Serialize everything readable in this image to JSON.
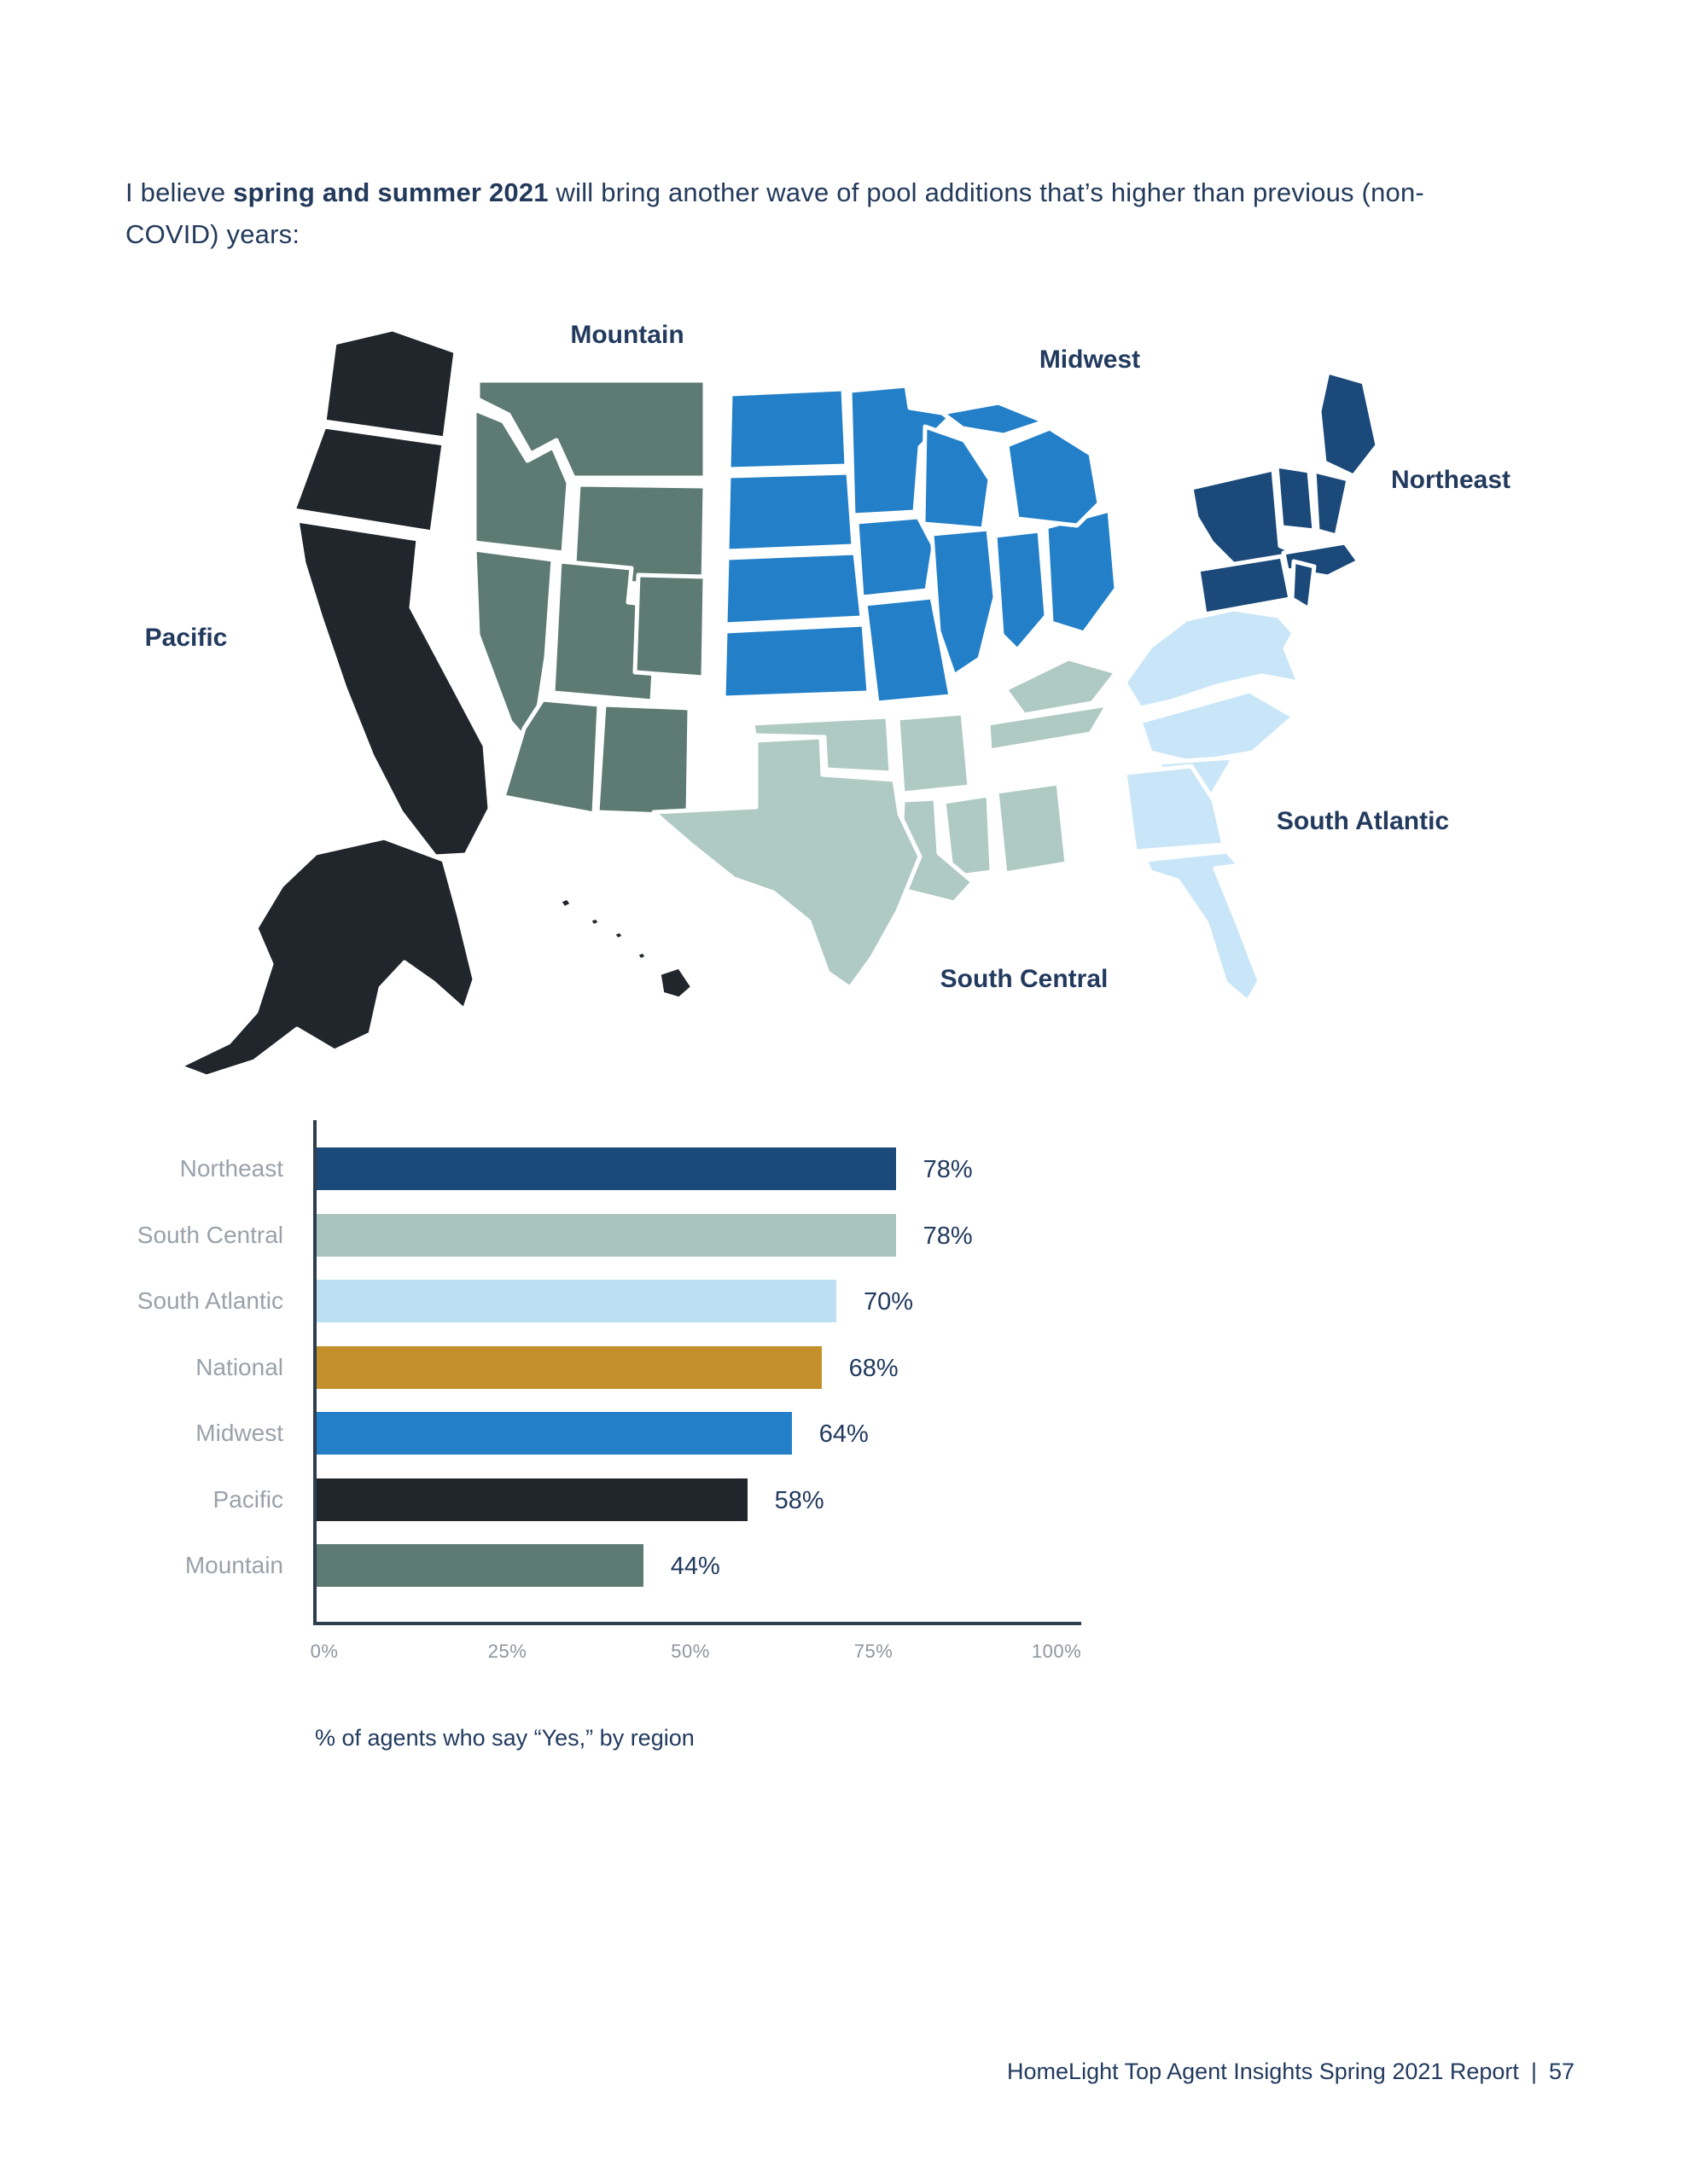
{
  "heading": {
    "prefix": "I believe ",
    "bold": "spring and summer 2021",
    "suffix": " will bring another wave of pool additions that’s higher than previous (non-COVID) years:"
  },
  "map": {
    "labels": [
      {
        "id": "mountain",
        "text": "Mountain"
      },
      {
        "id": "midwest",
        "text": "Midwest"
      },
      {
        "id": "northeast",
        "text": "Northeast"
      },
      {
        "id": "pacific",
        "text": "Pacific"
      },
      {
        "id": "south-atlantic",
        "text": "South Atlantic"
      },
      {
        "id": "south-central",
        "text": "South Central"
      }
    ],
    "region_colors": {
      "pacific": "#20262C",
      "mountain": "#5D7A73",
      "midwest": "#2380C8",
      "northeast": "#1B4A7A",
      "south_atlantic": "#C9E6F8",
      "south_central": "#AFC9C3"
    }
  },
  "chart_data": {
    "type": "bar",
    "orientation": "horizontal",
    "categories": [
      "Northeast",
      "South Central",
      "South Atlantic",
      "National",
      "Midwest",
      "Pacific",
      "Mountain"
    ],
    "values": [
      78,
      78,
      70,
      68,
      64,
      58,
      44
    ],
    "value_labels": [
      "78%",
      "78%",
      "70%",
      "68%",
      "64%",
      "58%",
      "44%"
    ],
    "bar_colors": [
      "#1B4A7A",
      "#A9C4BE",
      "#BCDFF4",
      "#C3902C",
      "#2380C8",
      "#20262C",
      "#5D7A73"
    ],
    "xlabel_ticks": [
      "0%",
      "25%",
      "50%",
      "75%",
      "100%"
    ],
    "xlim": [
      0,
      100
    ],
    "grid": false,
    "legend": false,
    "caption": "% of agents who say “Yes,” by region",
    "axis_color": "#2E3D50",
    "label_color": "#9AA1A9",
    "value_color": "#223A5E",
    "tick_color": "#8E959E"
  },
  "footer": {
    "text": "HomeLight Top Agent Insights Spring 2021 Report",
    "separator": "|",
    "page_number": "57"
  }
}
